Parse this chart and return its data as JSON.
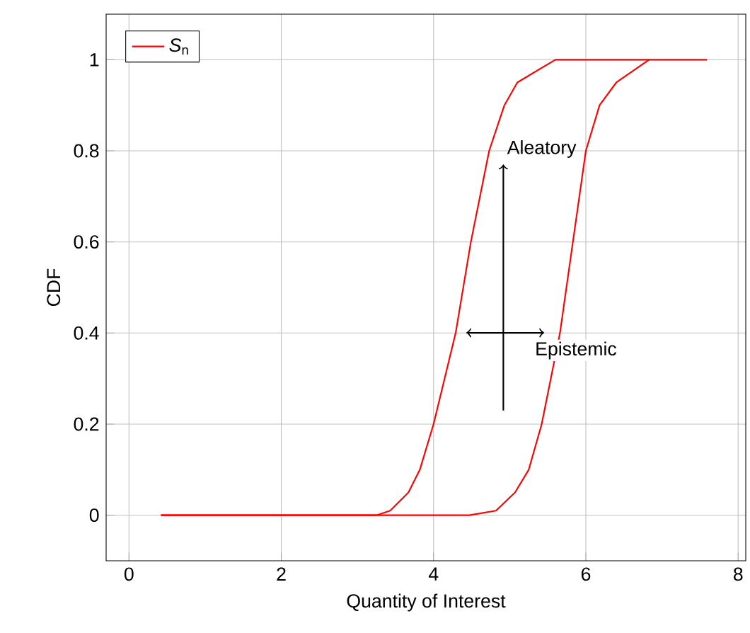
{
  "chart_data": {
    "type": "line",
    "xlabel": "Quantity of Interest",
    "ylabel": "CDF",
    "xlim": [
      -0.3,
      8.1
    ],
    "ylim": [
      -0.1,
      1.1
    ],
    "xticks": [
      0,
      2,
      4,
      6,
      8
    ],
    "yticks": [
      0,
      0.2,
      0.4,
      0.6,
      0.8,
      1
    ],
    "grid": true,
    "legend": "top left",
    "series": [
      {
        "name": "*S*$_{n}$",
        "color": "#ff0000",
        "x": [
          0.42,
          3.25,
          3.43,
          3.67,
          3.82,
          4.0,
          4.29,
          4.49,
          4.73,
          4.93,
          5.1,
          5.6,
          6.83
        ],
        "values": [
          0,
          0,
          0.01,
          0.05,
          0.1,
          0.2,
          0.4,
          0.6,
          0.8,
          0.9,
          0.95,
          1,
          1
        ]
      },
      {
        "color": "#ff0000",
        "x": [
          0.42,
          4.47,
          4.82,
          5.07,
          5.25,
          5.42,
          5.66,
          5.83,
          6.0,
          6.18,
          6.4,
          6.83,
          7.59
        ],
        "values": [
          0,
          0,
          0.01,
          0.05,
          0.1,
          0.2,
          0.4,
          0.6,
          0.8,
          0.9,
          0.95,
          1,
          1
        ]
      }
    ],
    "annotations": [
      "Aleatory",
      "Epistemic"
    ]
  }
}
